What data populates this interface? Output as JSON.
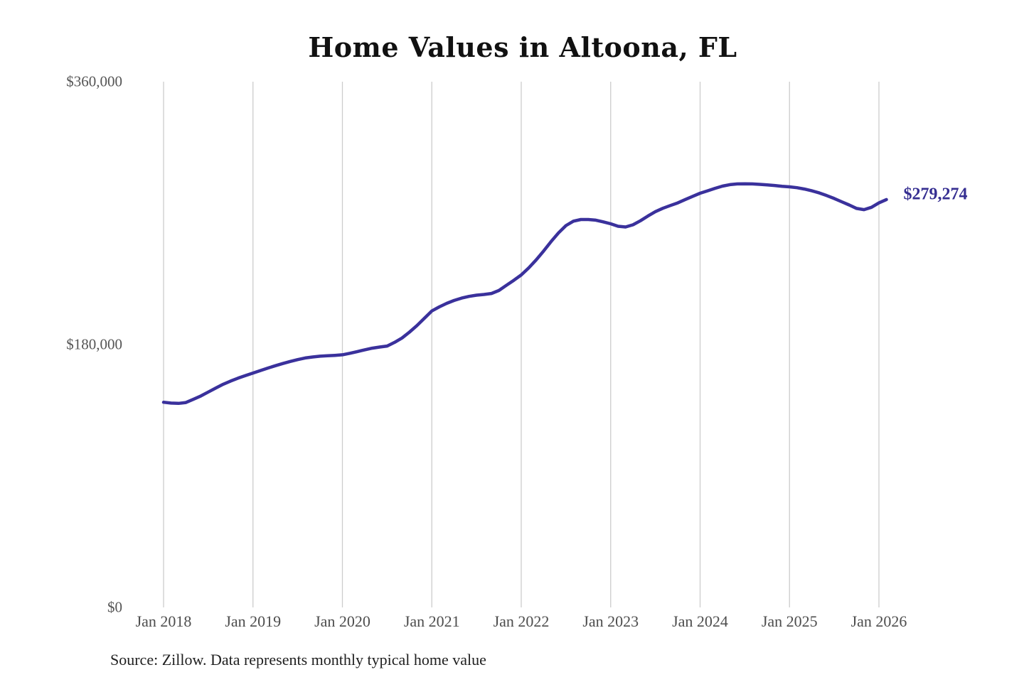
{
  "title": "Home Values in Altoona, FL",
  "source_note": "Source: Zillow. Data represents monthly typical home value",
  "colors": {
    "line": "#3a319c",
    "latest_label": "#352e91",
    "grid": "#cccccc",
    "axis_text": "#4d4d4d",
    "title_text": "#111111"
  },
  "chart_data": {
    "type": "line",
    "title": "Home Values in Altoona, FL",
    "xlabel": "",
    "ylabel": "",
    "ylim": [
      0,
      360000
    ],
    "grid": "vertical-only",
    "legend": "none",
    "y_ticks": [
      {
        "label": "$0",
        "value": 0
      },
      {
        "label": "$180,000",
        "value": 180000
      },
      {
        "label": "$360,000",
        "value": 360000
      }
    ],
    "x_tick_labels": [
      "Jan 2018",
      "Jan 2019",
      "Jan 2020",
      "Jan 2021",
      "Jan 2022",
      "Jan 2023",
      "Jan 2024",
      "Jan 2025",
      "Jan 2026"
    ],
    "series": [
      {
        "name": "Monthly typical home value",
        "start_month": "Jan 2018",
        "frequency": "monthly",
        "values": [
          140500,
          139900,
          139700,
          140300,
          142500,
          144800,
          147500,
          150200,
          152800,
          155000,
          157000,
          158800,
          160500,
          162200,
          163900,
          165500,
          167000,
          168400,
          169700,
          170800,
          171500,
          172000,
          172300,
          172600,
          173000,
          174000,
          175200,
          176400,
          177500,
          178300,
          179000,
          181500,
          184500,
          188500,
          193000,
          198000,
          203000,
          205800,
          208200,
          210200,
          211800,
          213000,
          213800,
          214300,
          215000,
          217000,
          220500,
          224000,
          227700,
          232500,
          238000,
          244000,
          250500,
          256500,
          261500,
          264500,
          265600,
          265600,
          265200,
          264000,
          262700,
          261000,
          260500,
          262000,
          264800,
          268000,
          271000,
          273300,
          275200,
          277000,
          279300,
          281500,
          283600,
          285300,
          287000,
          288500,
          289500,
          290000,
          290100,
          290000,
          289700,
          289300,
          288900,
          288400,
          288000,
          287400,
          286500,
          285300,
          283800,
          282000,
          280000,
          277800,
          275600,
          273200,
          272400,
          274000,
          277000,
          279274
        ]
      }
    ],
    "latest": {
      "label": "$279,274",
      "value": 279274,
      "month": "Feb 2026"
    }
  }
}
